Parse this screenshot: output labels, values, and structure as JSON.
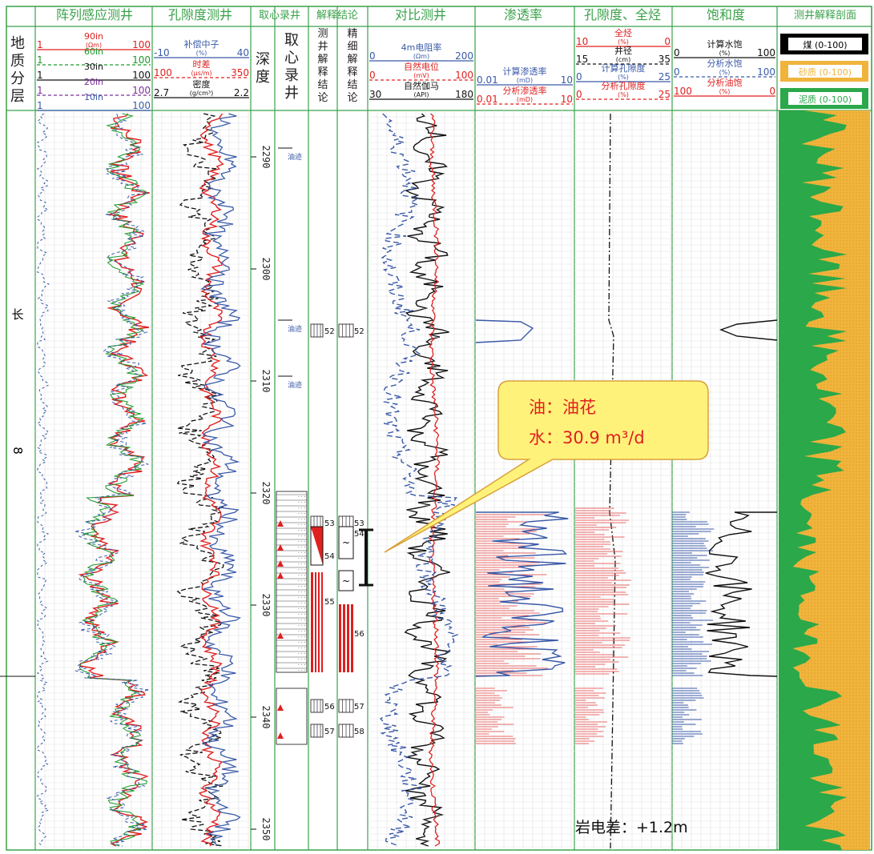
{
  "headers": {
    "layer": "",
    "induction": "阵列感应测井",
    "porosity_log": "孔隙度测井",
    "coring_log": "取心录井",
    "interp": "解释结论",
    "contrast": "对比测井",
    "perm": "渗透率",
    "por_gas": "孔隙度、全烃",
    "sat": "饱和度",
    "profile": "测井解释剖面"
  },
  "sub_headers": {
    "layer": [
      "地",
      "质",
      "分",
      "层"
    ],
    "depth": [
      "深",
      "度"
    ],
    "core": [
      "取",
      "心",
      "录",
      "井"
    ],
    "logint": [
      "测",
      "井",
      "解",
      "释",
      "结",
      "论"
    ],
    "fineint": [
      "精",
      "细",
      "解",
      "释",
      "结",
      "论"
    ]
  },
  "induction_scales": [
    {
      "name": "90in",
      "unit": "(Ωm)",
      "left": "1",
      "right": "100",
      "color": "#e02020"
    },
    {
      "name": "60in",
      "left": "1",
      "right": "100",
      "color": "#1a9a2a"
    },
    {
      "name": "30in",
      "left": "1",
      "right": "100",
      "color": "#111111"
    },
    {
      "name": "20in",
      "left": "1",
      "right": "100",
      "color": "#7b2e9a"
    },
    {
      "name": "10in",
      "left": "1",
      "right": "100",
      "color": "#3a5aa8"
    }
  ],
  "porosity_scales": [
    {
      "name": "补偿中子",
      "unit": "(%)",
      "left": "-10",
      "right": "40",
      "color": "#3a5aa8"
    },
    {
      "name": "时差",
      "unit": "(μs/m)",
      "left": "100",
      "right": "350",
      "color": "#e02020"
    },
    {
      "name": "密度",
      "unit": "(g/cm³)",
      "left": "2.7",
      "right": "2.2",
      "color": "#111111"
    }
  ],
  "contrast_scales": [
    {
      "name": "4m电阻率",
      "unit": "(Ωm)",
      "left": "0",
      "right": "200",
      "color": "#3a5aa8"
    },
    {
      "name": "自然电位",
      "unit": "(mV)",
      "left": "0",
      "right": "100",
      "color": "#e02020"
    },
    {
      "name": "自然伽马",
      "unit": "(API)",
      "left": "30",
      "right": "180",
      "color": "#111111"
    }
  ],
  "perm_scales": [
    {
      "name": "计算渗透率",
      "unit": "(mD)",
      "left": "0.01",
      "right": "10",
      "color": "#3a5aa8"
    },
    {
      "name": "分析渗透率",
      "unit": "(mD)",
      "left": "0.01",
      "right": "10",
      "color": "#e02020"
    }
  ],
  "por_scales": [
    {
      "name": "全烃",
      "unit": "(%)",
      "left": "10",
      "right": "0",
      "color": "#e02020"
    },
    {
      "name": "井径",
      "unit": "(cm)",
      "left": "15",
      "right": "35",
      "color": "#111111"
    },
    {
      "name": "计算孔隙度",
      "unit": "(%)",
      "left": "0",
      "right": "25",
      "color": "#3a5aa8"
    },
    {
      "name": "分析孔隙度",
      "unit": "(%)",
      "left": "0",
      "right": "25",
      "color": "#e02020"
    }
  ],
  "sat_scales": [
    {
      "name": "计算水饱",
      "unit": "(%)",
      "left": "0",
      "right": "100",
      "color": "#111111"
    },
    {
      "name": "分析水饱",
      "unit": "(%)",
      "left": "0",
      "right": "100",
      "color": "#3a5aa8"
    },
    {
      "name": "分析油饱",
      "unit": "(%)",
      "left": "100",
      "right": "0",
      "color": "#e02020"
    }
  ],
  "profile_legend": [
    {
      "label": "煤 (0-100)",
      "color": "#000000"
    },
    {
      "label": "砂质 (0-100)",
      "color": "#f0b43c"
    },
    {
      "label": "泥质 (0-100)",
      "color": "#2aa84a"
    }
  ],
  "depths": [
    "2290",
    "2300",
    "2310",
    "2320",
    "2330",
    "2340",
    "2350"
  ],
  "layer_labels": [
    "长",
    "8"
  ],
  "show_marks": [
    "油迹",
    "油迹",
    "油迹"
  ],
  "zones_log": [
    "52",
    "53",
    "54",
    "55",
    "56",
    "57"
  ],
  "zones_fine": [
    "52",
    "53",
    "54",
    "56",
    "57",
    "58"
  ],
  "callout": {
    "line1": "油：油花",
    "line2": "水：30.9 m³/d"
  },
  "footer": "岩电差：+1.2m",
  "colors": {
    "grid_green": "#3aa24a",
    "red": "#e02020",
    "blue": "#3a5aa8",
    "sand": "#f0b43c",
    "shale": "#2aa84a"
  }
}
